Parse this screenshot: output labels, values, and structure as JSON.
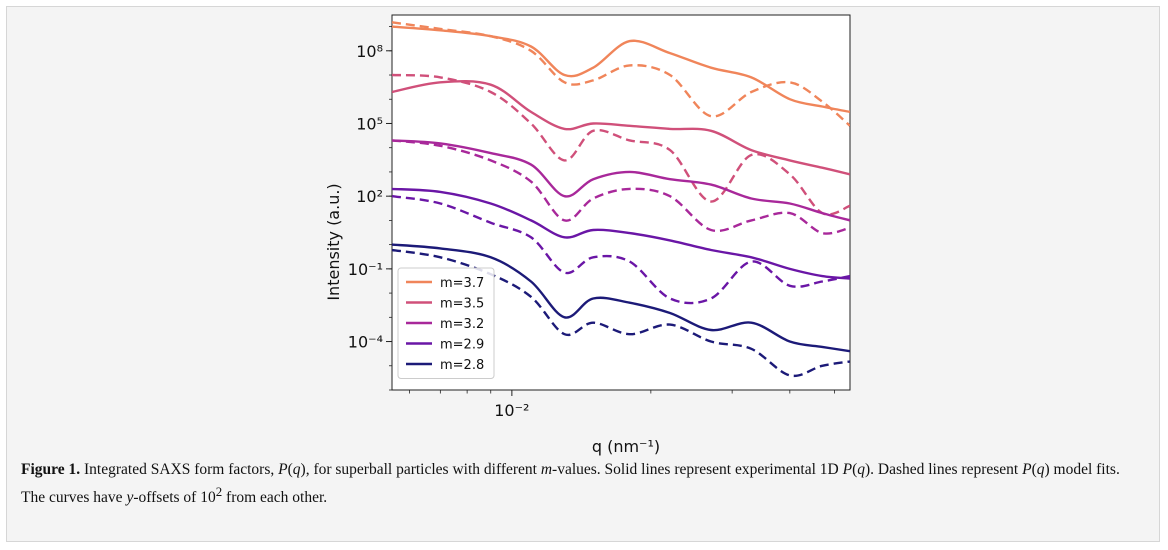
{
  "caption": {
    "label": "Figure 1.",
    "text_html": "Integrated SAXS form factors, <i>P</i>(<i>q</i>), for superball particles with different <i>m</i>-values. Solid lines represent experimental 1D <i>P</i>(<i>q</i>). Dashed lines represent <i>P</i>(<i>q</i>) model fits. The curves have <i>y</i>-offsets of 10<sup>2</sup> from each other."
  },
  "chart_data": {
    "type": "line",
    "title": "",
    "xlabel": "q (nm⁻¹)",
    "ylabel": "Intensity (a.u.)",
    "xscale": "log",
    "yscale": "log",
    "xlim": [
      0.0055,
      0.054
    ],
    "ylim": [
      1e-06,
      3000000000.0
    ],
    "xticks": [
      {
        "value": 0.01,
        "label": "10⁻²"
      }
    ],
    "yticks": [
      {
        "value": 100000000.0,
        "label": "10⁸"
      },
      {
        "value": 100000.0,
        "label": "10⁵"
      },
      {
        "value": 100,
        "label": "10²"
      },
      {
        "value": 0.1,
        "label": "10⁻¹"
      },
      {
        "value": 0.0001,
        "label": "10⁻⁴"
      }
    ],
    "legend": {
      "position": "lower-left",
      "entries": [
        "m=3.7",
        "m=3.5",
        "m=3.2",
        "m=2.9",
        "m=2.8"
      ]
    },
    "series_colors": [
      "#f0855a",
      "#d0507a",
      "#a8289a",
      "#6a16a6",
      "#1c1a78"
    ],
    "line_styles": {
      "experimental": "solid",
      "model_fit": "dashed"
    },
    "x": [
      0.0055,
      0.007,
      0.009,
      0.011,
      0.013,
      0.015,
      0.018,
      0.022,
      0.027,
      0.033,
      0.04,
      0.047,
      0.054
    ],
    "series": [
      {
        "name": "m=3.7",
        "style": "solid",
        "values": [
          1000000000.0,
          700000000.0,
          400000000.0,
          150000000.0,
          10000000.0,
          20000000.0,
          250000000.0,
          80000000.0,
          20000000.0,
          8000000.0,
          1000000.0,
          500000.0,
          300000.0
        ]
      },
      {
        "name": "m=3.7",
        "style": "dashed",
        "values": [
          1500000000.0,
          800000000.0,
          400000000.0,
          100000000.0,
          5000000.0,
          6000000.0,
          25000000.0,
          10000000.0,
          200000.0,
          2000000.0,
          5000000.0,
          800000.0,
          80000.0
        ]
      },
      {
        "name": "m=3.5",
        "style": "solid",
        "values": [
          2000000.0,
          5000000.0,
          4000000.0,
          300000.0,
          60000.0,
          100000.0,
          80000.0,
          60000.0,
          50000.0,
          8000.0,
          3000.0,
          1500.0,
          800.0
        ]
      },
      {
        "name": "m=3.5",
        "style": "dashed",
        "values": [
          10000000.0,
          8000000.0,
          2000000.0,
          100000.0,
          3000.0,
          50000.0,
          20000.0,
          8000.0,
          60.0,
          5000.0,
          800.0,
          20.0,
          40.0
        ]
      },
      {
        "name": "m=3.2",
        "style": "solid",
        "values": [
          20000.0,
          15000.0,
          6000.0,
          2000.0,
          100.0,
          500.0,
          1000.0,
          500.0,
          300.0,
          80.0,
          50.0,
          20.0,
          10.0
        ]
      },
      {
        "name": "m=3.2",
        "style": "dashed",
        "values": [
          20000.0,
          12000.0,
          3000.0,
          400.0,
          10.0,
          80.0,
          200.0,
          100.0,
          4,
          10.0,
          20.0,
          3,
          5
        ]
      },
      {
        "name": "m=2.9",
        "style": "solid",
        "values": [
          200.0,
          150.0,
          50.0,
          10.0,
          2,
          4,
          3,
          1.5,
          0.6,
          0.3,
          0.1,
          0.05,
          0.04
        ]
      },
      {
        "name": "m=2.9",
        "style": "dashed",
        "values": [
          100.0,
          50.0,
          8,
          2,
          0.07,
          0.3,
          0.2,
          0.006,
          0.006,
          0.2,
          0.02,
          0.03,
          0.05
        ]
      },
      {
        "name": "m=2.8",
        "style": "solid",
        "values": [
          1,
          0.7,
          0.3,
          0.03,
          0.001,
          0.006,
          0.004,
          0.0015,
          0.0003,
          0.0006,
          0.0001,
          6e-05,
          4e-05
        ]
      },
      {
        "name": "m=2.8",
        "style": "dashed",
        "values": [
          0.6,
          0.3,
          0.06,
          0.007,
          0.0002,
          0.0006,
          0.0002,
          0.0005,
          0.0001,
          5e-05,
          4e-06,
          1e-05,
          1.5e-05
        ]
      }
    ]
  }
}
